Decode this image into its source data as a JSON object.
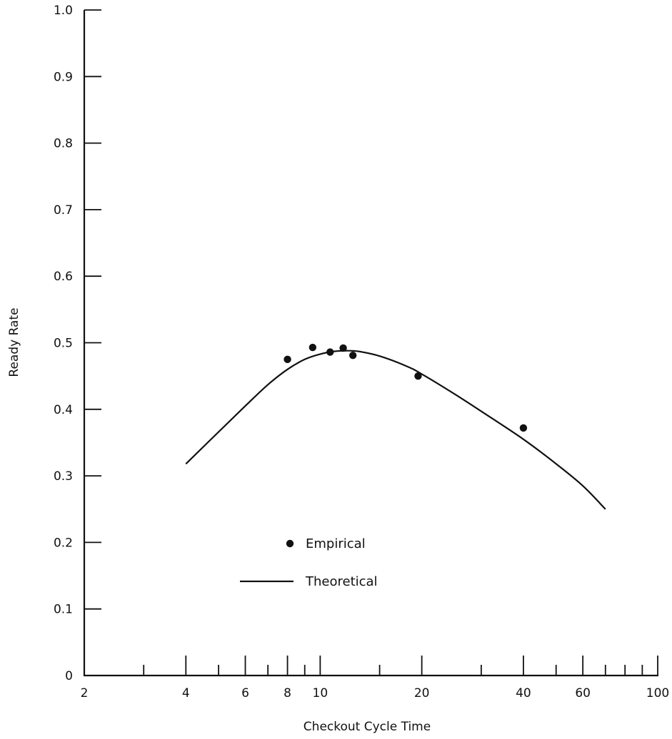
{
  "chart_data": {
    "type": "scatter",
    "xlabel": "Checkout Cycle Time",
    "ylabel": "Ready Rate",
    "x_scale": "log",
    "xlim": [
      2,
      100
    ],
    "ylim": [
      0,
      1.0
    ],
    "x_tick_labels": [
      "2",
      "4",
      "6",
      "8",
      "10",
      "20",
      "40",
      "60",
      "100"
    ],
    "x_tick_values": [
      2,
      4,
      6,
      8,
      10,
      20,
      40,
      60,
      100
    ],
    "x_minor_ticks": [
      3,
      5,
      7,
      9,
      15,
      30,
      50,
      70,
      80,
      90
    ],
    "y_tick_labels": [
      "0",
      "0.1",
      "0.2",
      "0.3",
      "0.4",
      "0.5",
      "0.6",
      "0.7",
      "0.8",
      "0.9",
      "1.0"
    ],
    "y_tick_values": [
      0,
      0.1,
      0.2,
      0.3,
      0.4,
      0.5,
      0.6,
      0.7,
      0.8,
      0.9,
      1.0
    ],
    "grid": false,
    "legend_position": "lower-center",
    "series": [
      {
        "name": "Empirical",
        "type": "scatter",
        "x": [
          8,
          9.5,
          10.7,
          11.7,
          12.5,
          19.5,
          40
        ],
        "y": [
          0.475,
          0.493,
          0.486,
          0.492,
          0.481,
          0.45,
          0.372
        ]
      },
      {
        "name": "Theoretical",
        "type": "line",
        "x": [
          4,
          5,
          6,
          7,
          8,
          9,
          10,
          11,
          12,
          13,
          15,
          18,
          20,
          25,
          30,
          40,
          50,
          60,
          70
        ],
        "y": [
          0.318,
          0.366,
          0.405,
          0.437,
          0.46,
          0.475,
          0.483,
          0.487,
          0.488,
          0.487,
          0.48,
          0.465,
          0.453,
          0.423,
          0.397,
          0.355,
          0.318,
          0.285,
          0.25
        ]
      }
    ]
  }
}
